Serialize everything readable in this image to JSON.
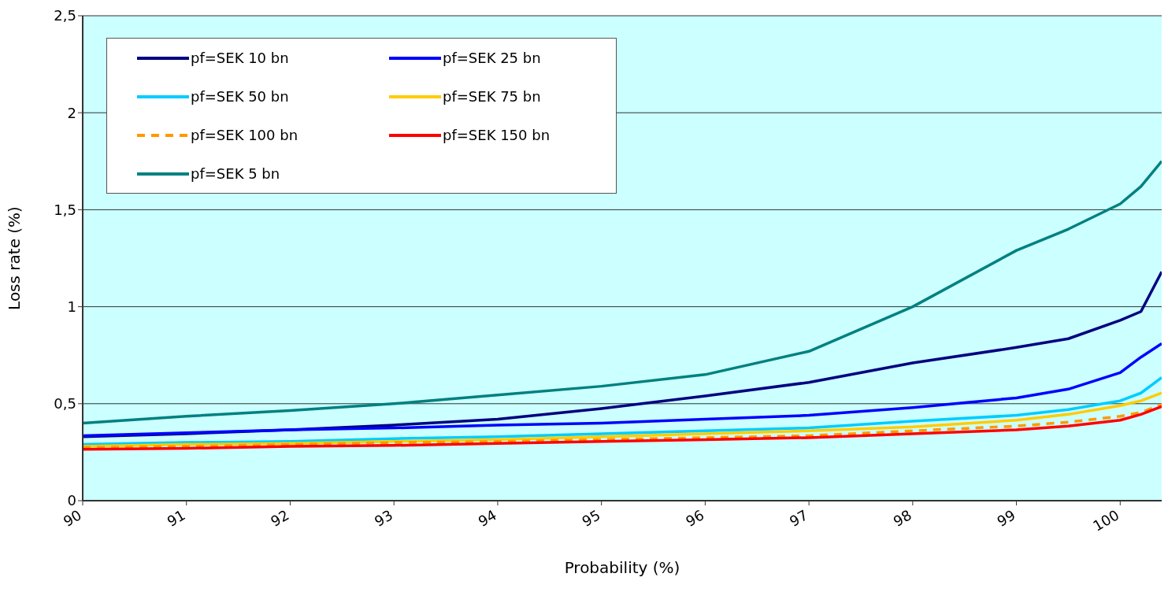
{
  "chart_data": {
    "type": "line",
    "xlabel": "Probability (%)",
    "ylabel": "Loss rate (%)",
    "x": [
      90,
      91,
      92,
      93,
      94,
      95,
      96,
      97,
      98,
      99,
      99.5,
      100,
      100.2,
      100.4
    ],
    "xlim": [
      90,
      100.4
    ],
    "xticks": [
      90,
      91,
      92,
      93,
      94,
      95,
      96,
      97,
      98,
      99,
      100
    ],
    "ylim": [
      0,
      2.5
    ],
    "yticks": [
      0,
      {
        "value": 0.5,
        "label": "0,5"
      },
      1,
      {
        "value": 1.5,
        "label": "1,5"
      },
      2,
      {
        "value": 2.5,
        "label": "2,5"
      }
    ],
    "grid": "y",
    "legend": "top left",
    "marker": "none",
    "series": [
      {
        "name": "pf=SEK 10 bn",
        "color": "#000080",
        "values": [
          0.33,
          0.345,
          0.365,
          0.39,
          0.42,
          0.475,
          0.54,
          0.61,
          0.71,
          0.79,
          0.835,
          0.93,
          0.975,
          1.18
        ]
      },
      {
        "name": "pf=SEK 25 bn",
        "color": "#0000ff",
        "values": [
          0.335,
          0.35,
          0.365,
          0.375,
          0.39,
          0.4,
          0.42,
          0.44,
          0.48,
          0.53,
          0.575,
          0.66,
          0.74,
          0.81
        ]
      },
      {
        "name": "pf=SEK 50 bn",
        "color": "#00ccff",
        "values": [
          0.29,
          0.3,
          0.305,
          0.32,
          0.33,
          0.345,
          0.36,
          0.375,
          0.41,
          0.44,
          0.47,
          0.515,
          0.555,
          0.635
        ]
      },
      {
        "name": "pf=SEK 75 bn",
        "color": "#ffcc00",
        "values": [
          0.28,
          0.29,
          0.295,
          0.305,
          0.315,
          0.33,
          0.345,
          0.36,
          0.38,
          0.415,
          0.445,
          0.49,
          0.515,
          0.555
        ]
      },
      {
        "name": "pf=SEK 100 bn",
        "color": "#ff9900",
        "line_style": "dashed",
        "values": [
          0.275,
          0.28,
          0.29,
          0.3,
          0.305,
          0.315,
          0.325,
          0.335,
          0.36,
          0.385,
          0.405,
          0.435,
          0.455,
          0.495
        ]
      },
      {
        "name": "pf=SEK 150 bn",
        "color": "#ff0000",
        "values": [
          0.265,
          0.27,
          0.28,
          0.285,
          0.295,
          0.305,
          0.315,
          0.325,
          0.345,
          0.365,
          0.385,
          0.415,
          0.445,
          0.485
        ]
      },
      {
        "name": "pf=SEK 5 bn",
        "color": "#008080",
        "values": [
          0.4,
          0.435,
          0.465,
          0.5,
          0.545,
          0.59,
          0.65,
          0.77,
          1.0,
          1.29,
          1.4,
          1.53,
          1.62,
          1.75
        ]
      }
    ]
  }
}
